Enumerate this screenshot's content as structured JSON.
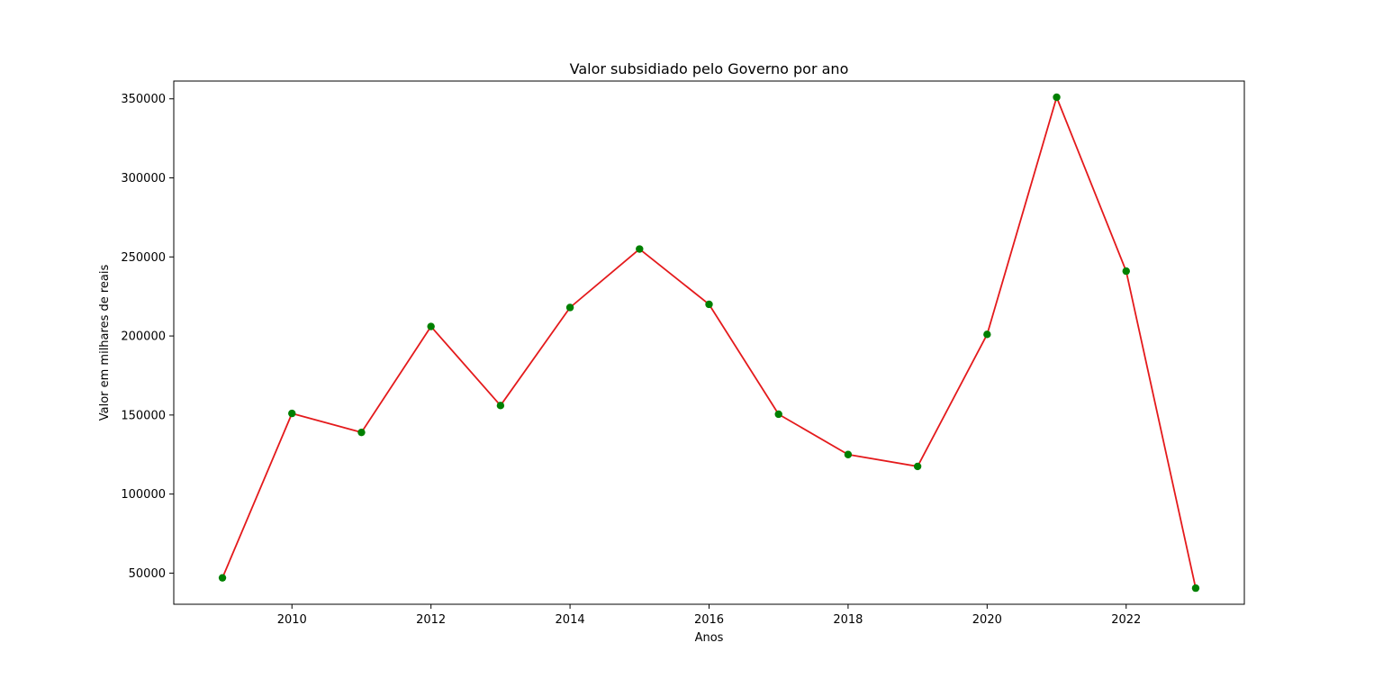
{
  "chart_data": {
    "type": "line",
    "title": "Valor subsidiado pelo Governo por ano",
    "xlabel": "Anos",
    "ylabel": "Valor em milhares de reais",
    "x": [
      2009,
      2010,
      2011,
      2012,
      2013,
      2014,
      2015,
      2016,
      2017,
      2018,
      2019,
      2020,
      2021,
      2022,
      2023
    ],
    "series": [
      {
        "values": [
          47000,
          151000,
          139000,
          206000,
          156000,
          218000,
          255000,
          220000,
          150500,
          125000,
          117500,
          201000,
          351000,
          241000,
          40500
        ],
        "line_color": "#e41a1c",
        "marker_color": "#008000"
      }
    ],
    "xlim": [
      2008.3,
      2023.7
    ],
    "ylim": [
      30300,
      361250
    ],
    "xticks": [
      2010,
      2012,
      2014,
      2016,
      2018,
      2020,
      2022
    ],
    "xtick_labels": [
      "2010",
      "2012",
      "2014",
      "2016",
      "2018",
      "2020",
      "2022"
    ],
    "yticks": [
      50000,
      100000,
      150000,
      200000,
      250000,
      300000,
      350000
    ],
    "ytick_labels": [
      "50000",
      "100000",
      "150000",
      "200000",
      "250000",
      "300000",
      "350000"
    ],
    "grid": false,
    "legend": "none"
  }
}
